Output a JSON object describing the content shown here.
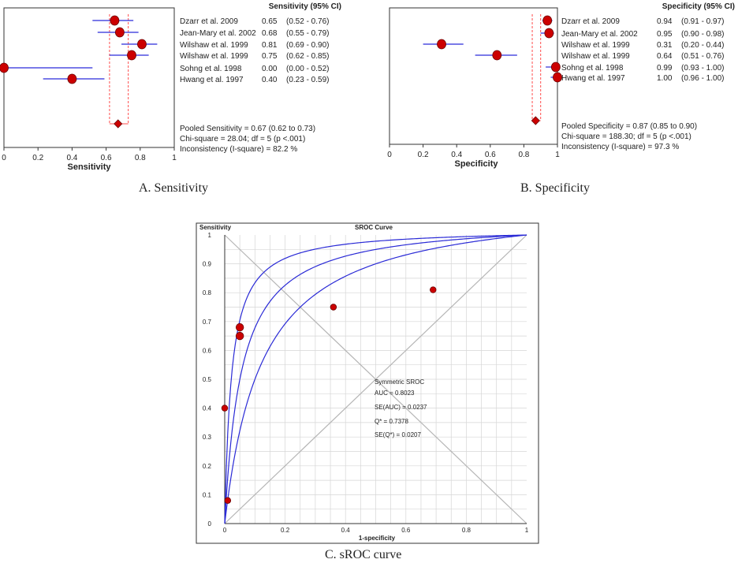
{
  "chart_data": [
    {
      "type": "forest",
      "title": "Sensitivity (95% CI)",
      "caption": "A. Sensitivity",
      "xlabel": "Sensitivity",
      "xlim": [
        0,
        1
      ],
      "ticks": [
        0,
        0.2,
        0.4,
        0.6,
        0.8,
        1
      ],
      "tick_labels": [
        "0",
        "0.2",
        "0.4",
        "0.6",
        "0.8",
        "1"
      ],
      "studies": [
        {
          "name": "Dzarr et al. 2009",
          "value": 0.65,
          "low": 0.52,
          "high": 0.76,
          "value_text": "0.65",
          "ci_text": "(0.52 - 0.76)"
        },
        {
          "name": "Jean-Mary et al. 2002",
          "value": 0.68,
          "low": 0.55,
          "high": 0.79,
          "value_text": "0.68",
          "ci_text": "(0.55 - 0.79)"
        },
        {
          "name": "Wilshaw et al. 1999",
          "value": 0.81,
          "low": 0.69,
          "high": 0.9,
          "value_text": "0.81",
          "ci_text": "(0.69 - 0.90)"
        },
        {
          "name": "Wilshaw et al. 1999",
          "value": 0.75,
          "low": 0.62,
          "high": 0.85,
          "value_text": "0.75",
          "ci_text": "(0.62 - 0.85)"
        },
        {
          "name": "Sohng et al. 1998",
          "value": 0.0,
          "low": 0.0,
          "high": 0.52,
          "value_text": "0.00",
          "ci_text": "(0.00 - 0.52)"
        },
        {
          "name": "Hwang et al. 1997",
          "value": 0.4,
          "low": 0.23,
          "high": 0.59,
          "value_text": "0.40",
          "ci_text": "(0.23 - 0.59)"
        }
      ],
      "pooled": {
        "value": 0.67,
        "low": 0.62,
        "high": 0.73
      },
      "summary_lines": [
        "Pooled Sensitivity = 0.67 (0.62 to 0.73)",
        "Chi-square = 28.04; df =  5 (p <.001)",
        "Inconsistency  (I-square)  = 82.2 %"
      ]
    },
    {
      "type": "forest",
      "title": "Specificity (95% CI)",
      "caption": "B. Specificity",
      "xlabel": "Specificity",
      "xlim": [
        0,
        1
      ],
      "ticks": [
        0,
        0.2,
        0.4,
        0.6,
        0.8,
        1
      ],
      "tick_labels": [
        "0",
        "0.2",
        "0.4",
        "0.6",
        "0.8",
        "1"
      ],
      "studies": [
        {
          "name": "Dzarr et al. 2009",
          "value": 0.94,
          "low": 0.91,
          "high": 0.97,
          "value_text": "0.94",
          "ci_text": "(0.91 - 0.97)"
        },
        {
          "name": "Jean-Mary et al. 2002",
          "value": 0.95,
          "low": 0.9,
          "high": 0.98,
          "value_text": "0.95",
          "ci_text": "(0.90 - 0.98)"
        },
        {
          "name": "Wilshaw et al. 1999",
          "value": 0.31,
          "low": 0.2,
          "high": 0.44,
          "value_text": "0.31",
          "ci_text": "(0.20 - 0.44)"
        },
        {
          "name": "Wilshaw et al. 1999",
          "value": 0.64,
          "low": 0.51,
          "high": 0.76,
          "value_text": "0.64",
          "ci_text": "(0.51 - 0.76)"
        },
        {
          "name": "Sohng et al. 1998",
          "value": 0.99,
          "low": 0.93,
          "high": 1.0,
          "value_text": "0.99",
          "ci_text": "(0.93 - 1.00)"
        },
        {
          "name": "Hwang et al. 1997",
          "value": 1.0,
          "low": 0.96,
          "high": 1.0,
          "value_text": "1.00",
          "ci_text": "(0.96 - 1.00)"
        }
      ],
      "pooled": {
        "value": 0.87,
        "low": 0.85,
        "high": 0.9
      },
      "summary_lines": [
        "Pooled Specificity = 0.87 (0.85 to 0.90)",
        "Chi-square = 188.30; df =  5 (p <.001)",
        "Inconsistency  (I-square)  = 97.3 %"
      ]
    },
    {
      "type": "sroc",
      "title": "SROC Curve",
      "caption": "C. sROC curve",
      "ylabel": "Sensitivity",
      "xlabel": "1-specificity",
      "xlim": [
        0,
        1
      ],
      "ylim": [
        0,
        1
      ],
      "x_ticks": [
        0,
        0.2,
        0.4,
        0.6,
        0.8,
        1
      ],
      "x_tick_labels": [
        "0",
        "0.2",
        "0.4",
        "0.6",
        "0.8",
        "1"
      ],
      "y_ticks": [
        0,
        0.1,
        0.2,
        0.3,
        0.4,
        0.5,
        0.6,
        0.7,
        0.8,
        0.9,
        1
      ],
      "y_tick_labels": [
        "0",
        "0.1",
        "0.2",
        "0.3",
        "0.4",
        "0.5",
        "0.6",
        "0.7",
        "0.8",
        "0.9",
        "1"
      ],
      "grid": true,
      "points": [
        {
          "x": 0.05,
          "y": 0.68
        },
        {
          "x": 0.05,
          "y": 0.65
        },
        {
          "x": 0.36,
          "y": 0.75
        },
        {
          "x": 0.69,
          "y": 0.81
        },
        {
          "x": 0.0,
          "y": 0.4
        },
        {
          "x": 0.01,
          "y": 0.08
        }
      ],
      "curve": {
        "auc": 0.8023,
        "lower_auc": 0.74,
        "upper_auc": 0.86
      },
      "annotation_lines": [
        "Symmetric SROC",
        "AUC = 0.8023",
        "SE(AUC) = 0.0237",
        "Q* = 0.7378",
        "SE(Q*) = 0.0207"
      ]
    }
  ],
  "colors": {
    "marker": "#cc0000",
    "ci_line": "#2b2bd9",
    "pooled_guide": "#ff4d4d",
    "curve": "#2a2ad6",
    "grid": "#d6d6d6",
    "diagonal": "#b5b5b5",
    "axis": "#333333",
    "text": "#222222"
  }
}
